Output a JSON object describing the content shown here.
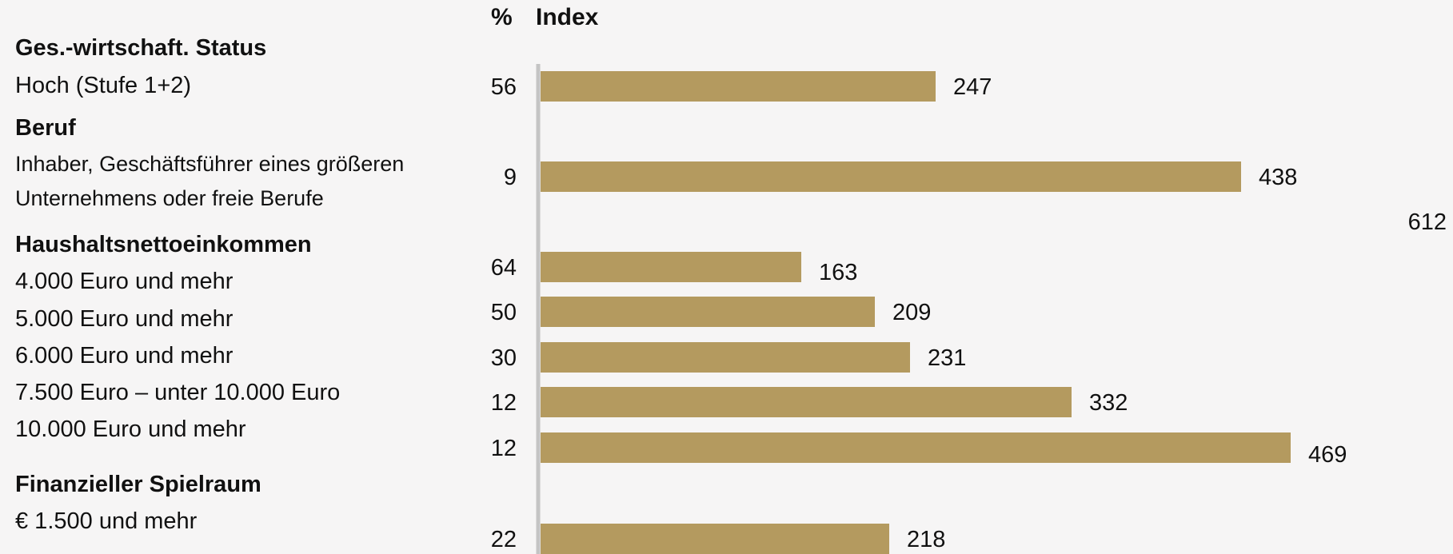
{
  "chart_data": {
    "type": "bar",
    "orientation": "horizontal",
    "columns": {
      "percent_header": "%",
      "index_header": "Index"
    },
    "bar_color": "#b49a5f",
    "axis_color": "#c4c4c4",
    "xlim": [
      0,
      612
    ],
    "extra_label": "612",
    "groups": [
      {
        "heading": "Ges.-wirtschaft. Status",
        "items": [
          {
            "label": "Hoch (Stufe 1+2)",
            "percent": "56",
            "index": 247
          }
        ]
      },
      {
        "heading": "Beruf",
        "items": [
          {
            "label_lines": [
              "Inhaber, Geschäftsführer eines größeren",
              "Unternehmens oder freie Berufe"
            ],
            "percent": "9",
            "index": 438
          }
        ]
      },
      {
        "heading": "Haushaltsnettoeinkommen",
        "items": [
          {
            "label": "4.000 Euro und mehr",
            "percent": "64",
            "index": 163
          },
          {
            "label": "5.000 Euro und mehr",
            "percent": "50",
            "index": 209
          },
          {
            "label": "6.000 Euro und mehr",
            "percent": "30",
            "index": 231
          },
          {
            "label": "7.500 Euro – unter 10.000 Euro",
            "percent": "12",
            "index": 332
          },
          {
            "label": "10.000 Euro und mehr",
            "percent": "12",
            "index": 469
          }
        ]
      },
      {
        "heading": "Finanzieller Spielraum",
        "items": [
          {
            "label": "€ 1.500 und mehr",
            "percent": "22",
            "index": 218
          }
        ]
      }
    ]
  }
}
